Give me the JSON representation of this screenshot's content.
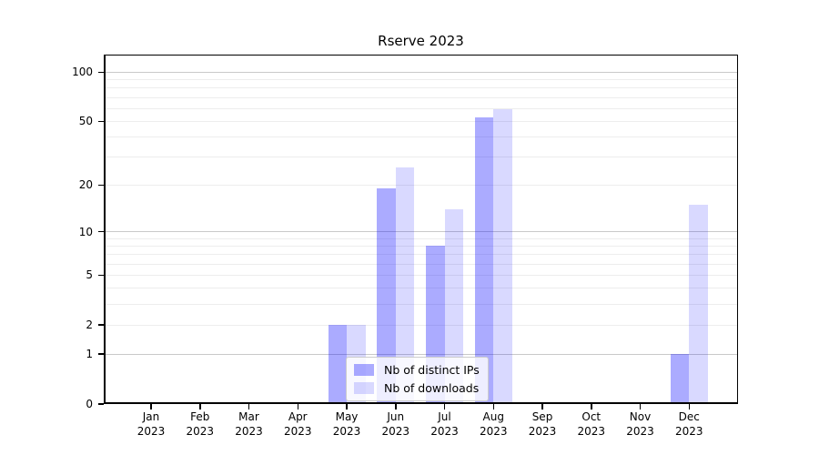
{
  "chart_data": {
    "type": "bar",
    "title": "Rserve 2023",
    "x": {
      "months": [
        "Jan",
        "Feb",
        "Mar",
        "Apr",
        "May",
        "Jun",
        "Jul",
        "Aug",
        "Sep",
        "Oct",
        "Nov",
        "Dec"
      ],
      "year": "2023"
    },
    "series": [
      {
        "name": "Nb of distinct IPs",
        "color_hex": "#0000ff",
        "alpha": 0.33,
        "color_on_white": "#aaaaff",
        "values": [
          0,
          0,
          0,
          0,
          2,
          19,
          8,
          53,
          0,
          0,
          0,
          1
        ]
      },
      {
        "name": "Nb of downloads",
        "color_hex": "#0000ff",
        "alpha": 0.15,
        "color_on_white": "#d9d9ff",
        "values": [
          0,
          0,
          0,
          0,
          2,
          26,
          14,
          59,
          0,
          0,
          0,
          15
        ]
      }
    ],
    "y_axis": {
      "scale": "log1p",
      "ticks": [
        0,
        1,
        2,
        5,
        10,
        20,
        50,
        100
      ],
      "ylim": [
        0,
        128
      ],
      "major_gridlines": [
        1,
        10,
        100
      ],
      "minor_gridlines": [
        2,
        3,
        4,
        5,
        6,
        7,
        8,
        9,
        20,
        30,
        40,
        50,
        60,
        70,
        80,
        90
      ]
    },
    "grid": {
      "major_color": "#c9c9c9",
      "minor_color": "#ededed"
    },
    "legend": {
      "position": "bottom-center",
      "entries": [
        "Nb of distinct IPs",
        "Nb of downloads"
      ]
    }
  }
}
